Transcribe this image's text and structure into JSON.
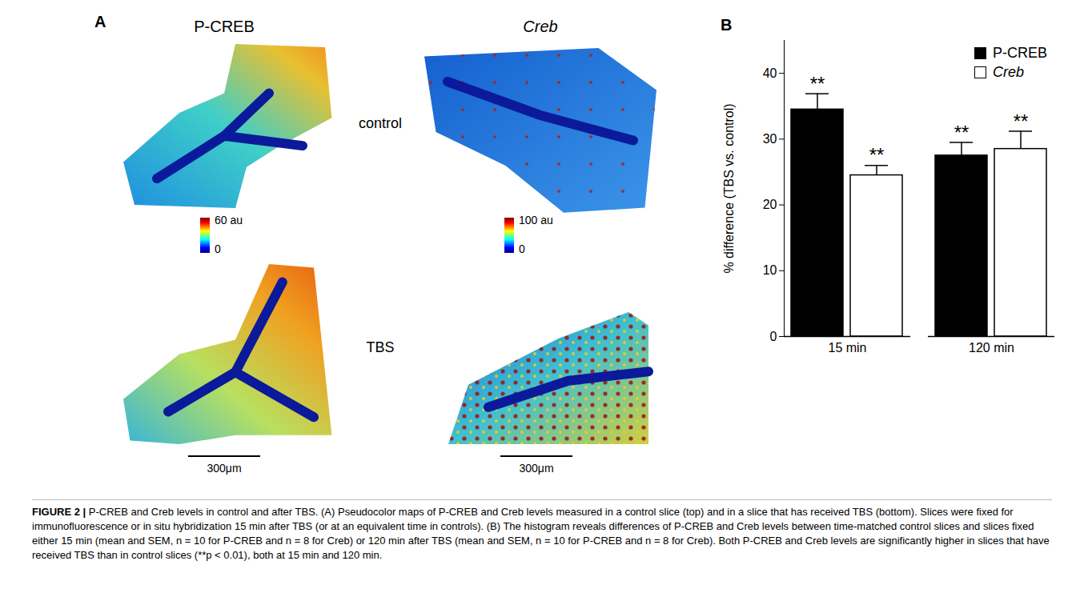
{
  "panel_a": {
    "label": "A",
    "columns": [
      "P-CREB",
      "Creb"
    ],
    "rows": [
      "control",
      "TBS"
    ],
    "colorbars": [
      {
        "max_label": "60 au",
        "min_label": "0"
      },
      {
        "max_label": "100 au",
        "min_label": "0"
      }
    ],
    "scale_bars": [
      "300μm",
      "300μm"
    ]
  },
  "chart_data": {
    "type": "bar",
    "panel_label": "B",
    "categories": [
      "15 min",
      "120 min"
    ],
    "y_label": "% difference (TBS vs. control)",
    "ylim": [
      0,
      45
    ],
    "yticks": [
      0,
      10,
      20,
      30,
      40
    ],
    "legend": "top-right",
    "series": [
      {
        "name": "P-CREB",
        "color": "#000000",
        "values": [
          34.5,
          27.5
        ],
        "errors": [
          2.4,
          2.0
        ],
        "annotations": [
          "**",
          "**"
        ]
      },
      {
        "name": "Creb",
        "color": "#ffffff",
        "values": [
          24.5,
          28.5
        ],
        "errors": [
          1.5,
          2.7
        ],
        "annotations": [
          "**",
          "**"
        ]
      }
    ]
  },
  "caption": {
    "label": "FIGURE 2 |",
    "text": "P-CREB and Creb levels in control and after TBS. (A) Pseudocolor maps of P-CREB and Creb levels measured in a control slice (top) and in a slice that has received TBS (bottom). Slices were fixed for immunofluorescence or in situ hybridization 15 min after TBS (or at an equivalent time in controls). (B) The histogram reveals differences of P-CREB and Creb levels between time-matched control slices and slices fixed either 15 min (mean and SEM, n = 10 for P-CREB and n = 8 for Creb) or 120 min after TBS (mean and SEM, n = 10 for P-CREB and n = 8 for Creb). Both P-CREB and Creb levels are significantly higher in slices that have received TBS than in control slices (**p < 0.01), both at 15 min and 120 min."
  }
}
